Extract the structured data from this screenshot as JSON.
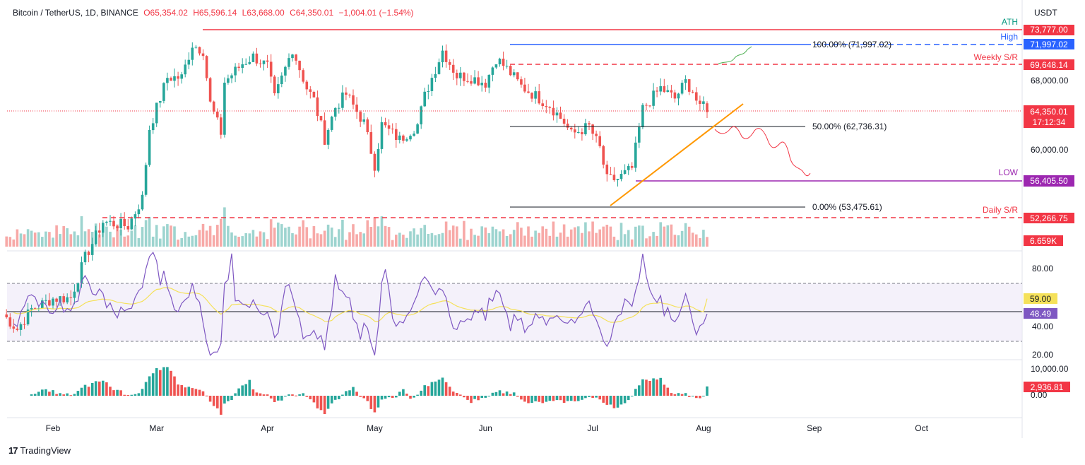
{
  "header": {
    "symbol": "Bitcoin / TetherUS, 1D, BINANCE",
    "open": "O65,354.02",
    "high": "H65,596.14",
    "low": "L63,668.00",
    "close": "C64,350.01",
    "change": "−1,004.01 (−1.54%)"
  },
  "currency": "USDT",
  "brand": "TradingView",
  "colors": {
    "up": "#26a69a",
    "down": "#ef5350",
    "ath": "#f23645",
    "high": "#2962ff",
    "low": "#9c27b0",
    "trendline": "#ff9800",
    "rsi": "#7e57c2",
    "rsi_ma": "#f5e15a",
    "projection_up": "#4caf50",
    "projection_down": "#f23645"
  },
  "price_labels": {
    "ath": "73,777.00",
    "high": "71,997.02",
    "weekly_sr": "69,648.14",
    "tick_68000": "68,000.00",
    "last": "64,350.01",
    "countdown": "17:12:34",
    "tick_60000": "60,000.00",
    "low": "56,405.50",
    "daily_sr": "52,266.75",
    "volume": "6.659K"
  },
  "annotations": {
    "ath": "ATH",
    "high": "High",
    "weekly_sr": "Weekly S/R",
    "low": "LOW",
    "daily_sr": "Daily S/R",
    "fib_100": "100.00% (71,997.02)",
    "fib_50": "50.00% (62,736.31)",
    "fib_0": "0.00% (53,475.61)"
  },
  "rsi_labels": {
    "tick_80": "80.00",
    "rsi_ma": "59.00",
    "rsi": "48.49",
    "tick_40": "40.00",
    "tick_20": "20.00"
  },
  "osc_labels": {
    "tick_10000": "10,000.00",
    "value": "2,936.81",
    "tick_0": "0.00"
  },
  "x_axis": [
    "Feb",
    "Mar",
    "Apr",
    "May",
    "Jun",
    "Jul",
    "Aug",
    "Sep",
    "Oct"
  ],
  "chart_data": {
    "type": "candlestick",
    "symbol": "Bitcoin / TetherUS",
    "interval": "1D",
    "exchange": "BINANCE",
    "last_ohlc": {
      "open": 65354.02,
      "high": 65596.14,
      "low": 63668.0,
      "close": 64350.01
    },
    "levels": {
      "ath": 73777.0,
      "high": 71997.02,
      "weekly_sr": 69648.14,
      "fib_50": 62736.31,
      "low": 56405.5,
      "fib_0": 53475.61,
      "daily_sr": 52266.75
    },
    "visible_price_ticks": [
      68000,
      60000
    ],
    "rsi": {
      "value": 48.49,
      "ma": 59.0,
      "upper_band": 70,
      "lower_band": 30,
      "ticks": [
        80,
        40,
        20
      ]
    },
    "oscillator": {
      "value": 2936.81,
      "ticks": [
        10000,
        0
      ]
    },
    "volume_last": "6.659K",
    "x_labels": [
      "Feb",
      "Mar",
      "Apr",
      "May",
      "Jun",
      "Jul",
      "Aug",
      "Sep",
      "Oct"
    ],
    "close_path": [
      [
        "2024-01-18",
        41200
      ],
      [
        "2024-01-22",
        39500
      ],
      [
        "2024-01-26",
        41800
      ],
      [
        "2024-02-01",
        43000
      ],
      [
        "2024-02-06",
        43100
      ],
      [
        "2024-02-10",
        47700
      ],
      [
        "2024-02-15",
        51800
      ],
      [
        "2024-02-22",
        51300
      ],
      [
        "2024-02-26",
        54500
      ],
      [
        "2024-02-28",
        62500
      ],
      [
        "2024-03-04",
        68300
      ],
      [
        "2024-03-08",
        68300
      ],
      [
        "2024-03-11",
        72100
      ],
      [
        "2024-03-14",
        71400
      ],
      [
        "2024-03-16",
        65300
      ],
      [
        "2024-03-19",
        62000
      ],
      [
        "2024-03-20",
        67800
      ],
      [
        "2024-03-25",
        69900
      ],
      [
        "2024-03-28",
        70700
      ],
      [
        "2024-04-01",
        69600
      ],
      [
        "2024-04-03",
        65900
      ],
      [
        "2024-04-08",
        71600
      ],
      [
        "2024-04-12",
        67100
      ],
      [
        "2024-04-14",
        65700
      ],
      [
        "2024-04-17",
        61300
      ],
      [
        "2024-04-20",
        64900
      ],
      [
        "2024-04-23",
        66400
      ],
      [
        "2024-04-28",
        63100
      ],
      [
        "2024-05-01",
        58300
      ],
      [
        "2024-05-03",
        62900
      ],
      [
        "2024-05-08",
        61200
      ],
      [
        "2024-05-13",
        62900
      ],
      [
        "2024-05-15",
        66200
      ],
      [
        "2024-05-20",
        71400
      ],
      [
        "2024-05-24",
        68500
      ],
      [
        "2024-05-28",
        68300
      ],
      [
        "2024-06-01",
        67700
      ],
      [
        "2024-06-04",
        70500
      ],
      [
        "2024-06-07",
        69300
      ],
      [
        "2024-06-11",
        67300
      ],
      [
        "2024-06-15",
        66200
      ],
      [
        "2024-06-19",
        65100
      ],
      [
        "2024-06-23",
        63200
      ],
      [
        "2024-06-25",
        61800
      ],
      [
        "2024-06-30",
        62700
      ],
      [
        "2024-07-03",
        60200
      ],
      [
        "2024-07-05",
        56600
      ],
      [
        "2024-07-08",
        56700
      ],
      [
        "2024-07-12",
        57900
      ],
      [
        "2024-07-15",
        64700
      ],
      [
        "2024-07-20",
        67100
      ],
      [
        "2024-07-24",
        65900
      ],
      [
        "2024-07-27",
        67800
      ],
      [
        "2024-07-29",
        66800
      ],
      [
        "2024-07-31",
        64600
      ],
      [
        "2024-08-01",
        65354
      ],
      [
        "2024-08-02",
        64350
      ]
    ]
  }
}
